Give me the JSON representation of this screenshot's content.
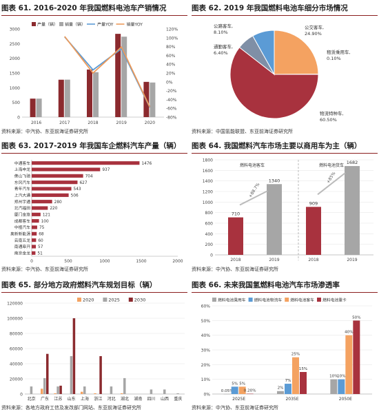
{
  "charts": [
    {
      "title": "图表 61. 2016-2020 年我国燃料电池车产销情况",
      "source": "资料来源：中汽协、东亚前海证券研究所"
    },
    {
      "title": "图表 62. 2019 年我国燃料电池车细分市场情况",
      "source": "资料来源：中国氢能联盟、东亚前海证券研究所"
    },
    {
      "title": "图表 63. 2017-2019 年我国车企燃料汽车产量（辆）",
      "source": "资料来源：中汽协、东亚前海证券研究所"
    },
    {
      "title": "图表 64. 我国燃料汽车市场主要以商用车为主（辆）",
      "source": "资料来源：中汽协、东亚前海证券研究所"
    },
    {
      "title": "图表 65. 部分地方政府燃料汽车规划目标（辆）",
      "source": "资料来源：各地方政府工信及发改部门网站、东亚前海证券研究所"
    },
    {
      "title": "图表 66. 未来我国氢燃料电池汽车市场渗透率",
      "source": "资料来源：中汽协、东亚前海证券研究所"
    }
  ],
  "chart_data": [
    {
      "type": "bar",
      "categories": [
        "2016",
        "2017",
        "2018",
        "2019",
        "2020"
      ],
      "series": [
        {
          "name": "产量（辆）",
          "kind": "bar",
          "axis": "left",
          "color": "#8b2a2e",
          "values": [
            629,
            1272,
            1619,
            2833,
            1199
          ]
        },
        {
          "name": "销量（辆）",
          "kind": "bar",
          "axis": "left",
          "color": "#a6a6a6",
          "values": [
            629,
            1275,
            1527,
            2737,
            1177
          ]
        },
        {
          "name": "产量YOY",
          "kind": "line",
          "axis": "right",
          "color": "#5b9bd5",
          "values": [
            null,
            1.02,
            0.27,
            0.75,
            -0.58
          ]
        },
        {
          "name": "销量YOY",
          "kind": "line",
          "axis": "right",
          "color": "#ed9a5a",
          "values": [
            null,
            1.03,
            0.2,
            0.79,
            -0.57
          ]
        }
      ],
      "ylim": [
        0,
        3000
      ],
      "yticks": [
        "0",
        "500",
        "1000",
        "1500",
        "2000",
        "2500",
        "3000"
      ],
      "y2lim": [
        -0.8,
        1.2
      ],
      "y2ticks": [
        "-80%",
        "-60%",
        "-40%",
        "-20%",
        "0%",
        "20%",
        "40%",
        "60%",
        "80%",
        "100%",
        "120%"
      ],
      "legend": "top"
    },
    {
      "type": "pie",
      "slices": [
        {
          "name": "公交客车",
          "label": "公交客车, 24.90%",
          "value": 24.9,
          "color": "#f4a261"
        },
        {
          "name": "租赁乘用车",
          "label": "租赁乘用车, 0.10%",
          "value": 0.1,
          "color": "#bfbfbf"
        },
        {
          "name": "物流特种车",
          "label": "物流特种车, 60.50%",
          "value": 60.5,
          "color": "#a8323e"
        },
        {
          "name": "通勤客车",
          "label": "通勤客车, 6.40%",
          "value": 6.4,
          "color": "#7f8fa6"
        },
        {
          "name": "公路客车",
          "label": "公路客车, 8.10%",
          "value": 8.1,
          "color": "#5b9bd5"
        }
      ]
    },
    {
      "type": "bar",
      "orientation": "horizontal",
      "categories": [
        "中通客车",
        "上海申龙",
        "佛山飞驰",
        "东风汽车",
        "青年汽车",
        "上汽大通",
        "郑州宇通",
        "北汽福田",
        "厦门金旅",
        "成都客车",
        "中植汽车",
        "奥新新能源",
        "云南五龙",
        "南通皋开",
        "南京金龙"
      ],
      "values": [
        1476,
        937,
        704,
        627,
        543,
        506,
        280,
        220,
        121,
        100,
        75,
        68,
        60,
        57,
        51
      ],
      "xlim": [
        0,
        2000
      ],
      "xticks": [
        "0",
        "500",
        "1000",
        "1500",
        "2000"
      ],
      "color": "#a8323e"
    },
    {
      "type": "bar",
      "categories": [
        "2018",
        "2019",
        "2018",
        "2019"
      ],
      "groups": [
        "燃料电池客车",
        "燃料电池货车"
      ],
      "values": [
        710,
        1340,
        909,
        1682
      ],
      "colors": [
        "#a8323e",
        "#a6a6a6",
        "#a8323e",
        "#a6a6a6"
      ],
      "annotations": [
        "+88.7%",
        "+85%"
      ],
      "ylim": [
        0,
        1800
      ],
      "yticks": [
        "0",
        "200",
        "400",
        "600",
        "800",
        "1000",
        "1200",
        "1400",
        "1600",
        "1800"
      ]
    },
    {
      "type": "bar",
      "categories": [
        "北京",
        "广东",
        "江苏",
        "山东",
        "上海",
        "浙江",
        "河北",
        "湖北",
        "湖南",
        "四川",
        "山西",
        "重庆"
      ],
      "series": [
        {
          "name": "2020",
          "color": "#f4a261",
          "values": [
            0,
            7000,
            1000,
            0,
            3000,
            1000,
            0,
            1000,
            0,
            0,
            0,
            0
          ]
        },
        {
          "name": "2025",
          "color": "#a6a6a6",
          "values": [
            10000,
            21000,
            10000,
            50000,
            10000,
            0,
            10000,
            21000,
            0,
            6000,
            6000,
            1000
          ]
        },
        {
          "name": "2030",
          "color": "#8b2a2e",
          "values": [
            0,
            53000,
            11000,
            100000,
            0,
            50000,
            0,
            0,
            0,
            0,
            0,
            0
          ]
        }
      ],
      "ylim": [
        0,
        120000
      ],
      "yticks": [
        "0",
        "20000",
        "40000",
        "60000",
        "80000",
        "100000",
        "120000"
      ],
      "legend": "top"
    },
    {
      "type": "bar",
      "categories": [
        "2025E",
        "2035E",
        "2050E"
      ],
      "series": [
        {
          "name": "燃料电池乘用车",
          "color": "#a6a6a6",
          "values": [
            0.0005,
            0.02,
            0.1
          ],
          "labels": [
            "0.05%",
            "2%",
            "10%"
          ]
        },
        {
          "name": "燃料电池物流车",
          "color": "#5b9bd5",
          "values": [
            0.05,
            0.07,
            0.1
          ],
          "labels": [
            "5%",
            "7%",
            "10%"
          ]
        },
        {
          "name": "燃料电池客车",
          "color": "#f4a261",
          "values": [
            0.05,
            0.25,
            0.4
          ],
          "labels": [
            "5%",
            "25%",
            "40%"
          ]
        },
        {
          "name": "燃料电池重卡",
          "color": "#a8323e",
          "values": [
            0.002,
            0.15,
            0.5
          ],
          "labels": [
            "0.20%",
            "15%",
            "50%"
          ]
        }
      ],
      "ylim": [
        0,
        0.6
      ],
      "yticks": [
        "0%",
        "10%",
        "20%",
        "30%",
        "40%",
        "50%",
        "60%"
      ],
      "legend": "top"
    }
  ]
}
